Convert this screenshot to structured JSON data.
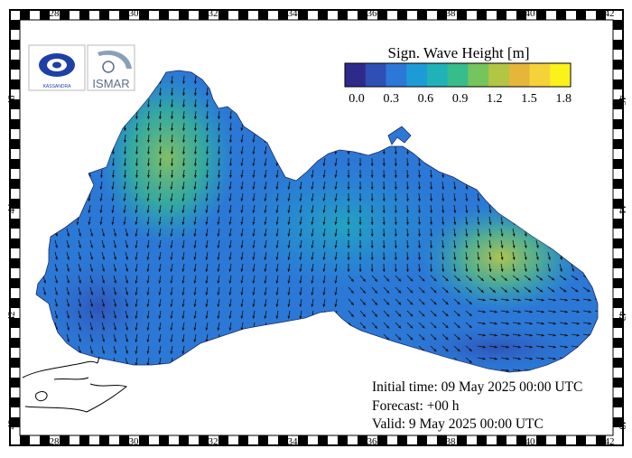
{
  "legend": {
    "title": "Sign. Wave Height [m]",
    "tick_labels": [
      "0.0",
      "0.3",
      "0.6",
      "0.9",
      "1.2",
      "1.5",
      "1.8"
    ],
    "colors": [
      "#2e2a8a",
      "#2f4fb4",
      "#2c78d6",
      "#1d9bd6",
      "#21b1b8",
      "#37bd8b",
      "#76c45d",
      "#b3c544",
      "#e6b63a",
      "#f6d23a",
      "#fbf21c"
    ]
  },
  "axes": {
    "lon_labels": [
      "28",
      "30",
      "32",
      "34",
      "36",
      "38",
      "40",
      "42"
    ],
    "lat_labels": [
      "40",
      "42",
      "44",
      "46"
    ]
  },
  "info": {
    "initial": "Initial time: 09 May 2025 00:00 UTC",
    "forecast": "Forecast: +00 h",
    "valid": "Valid:  9 May 2025 00:00 UTC"
  },
  "logos": [
    {
      "name": "kassandra-logo",
      "text": "KASSANDRA"
    },
    {
      "name": "ismar-logo",
      "text": "ISMAR"
    }
  ],
  "colors": {
    "sea_base": "#2c78d6",
    "sea_high": "#5fc07a",
    "sea_peak": "#b6c84a",
    "land": "#ffffff",
    "arrow": "#111111"
  }
}
